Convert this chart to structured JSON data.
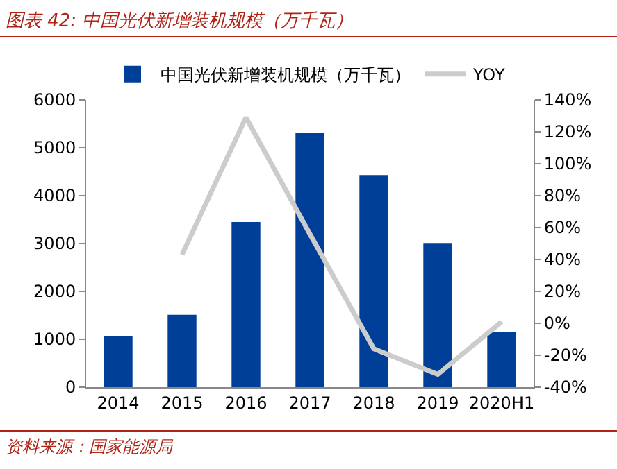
{
  "chart_data": {
    "type": "bar",
    "title": "图表 42:  中国光伏新增装机规模（万千瓦）",
    "categories": [
      "2014",
      "2015",
      "2016",
      "2017",
      "2018",
      "2019",
      "2020H1"
    ],
    "series": [
      {
        "name": "中国光伏新增装机规模（万千瓦）",
        "color": "#003f98",
        "values": [
          1060,
          1510,
          3450,
          5310,
          4430,
          3010,
          1150
        ]
      },
      {
        "name": "YOY",
        "type": "line",
        "axis": "y2",
        "color": "#cccccc",
        "values": [
          null,
          43,
          129,
          56,
          -16,
          -32,
          1
        ]
      }
    ],
    "ylim": [
      0,
      6000
    ],
    "yticks": [
      0,
      1000,
      2000,
      3000,
      4000,
      5000,
      6000
    ],
    "y2lim": [
      -40,
      140
    ],
    "y2ticks": [
      {
        "value": -40,
        "label": "-40%"
      },
      {
        "value": -20,
        "label": "-20%"
      },
      {
        "value": 0,
        "label": "0%"
      },
      {
        "value": 20,
        "label": "20%"
      },
      {
        "value": 40,
        "label": "40%"
      },
      {
        "value": 60,
        "label": "60%"
      },
      {
        "value": 80,
        "label": "80%"
      },
      {
        "value": 100,
        "label": "100%"
      },
      {
        "value": 120,
        "label": "120%"
      },
      {
        "value": 140,
        "label": "140%"
      }
    ],
    "grid": false,
    "legend": "top",
    "marker": "none",
    "line_style": "solid",
    "annotations": [
      "资料来源：国家能源局"
    ]
  }
}
